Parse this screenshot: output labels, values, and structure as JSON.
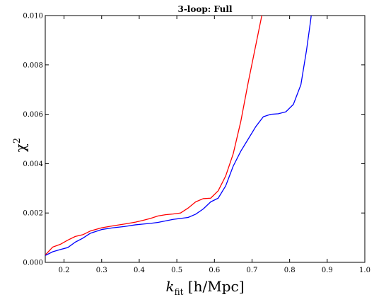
{
  "chart_data": {
    "type": "line",
    "title": "3-loop: Full",
    "xlabel": {
      "k": "k",
      "sub": "fit",
      "rest": " [h/Mpc]"
    },
    "ylabel": {
      "base": "χ",
      "sup": "2"
    },
    "xlim": [
      0.15,
      1.0
    ],
    "ylim": [
      0.0,
      0.01
    ],
    "xticks": [
      0.2,
      0.3,
      0.4,
      0.5,
      0.6,
      0.7,
      0.8,
      0.9,
      1.0
    ],
    "xtick_labels": [
      "0.2",
      "0.3",
      "0.4",
      "0.5",
      "0.6",
      "0.7",
      "0.8",
      "0.9",
      "1.0"
    ],
    "yticks": [
      0.0,
      0.002,
      0.004,
      0.006,
      0.008,
      0.01
    ],
    "ytick_labels": [
      "0.000",
      "0.002",
      "0.004",
      "0.006",
      "0.008",
      "0.010"
    ],
    "grid": false,
    "series": [
      {
        "color": "#ff0000",
        "x": [
          0.15,
          0.17,
          0.19,
          0.21,
          0.23,
          0.25,
          0.27,
          0.3,
          0.33,
          0.36,
          0.39,
          0.41,
          0.43,
          0.45,
          0.47,
          0.49,
          0.51,
          0.53,
          0.55,
          0.57,
          0.59,
          0.61,
          0.63,
          0.65,
          0.67,
          0.69,
          0.71,
          0.73
        ],
        "y": [
          0.0003,
          0.00062,
          0.00073,
          0.0009,
          0.00105,
          0.00112,
          0.00127,
          0.0014,
          0.00148,
          0.00155,
          0.00163,
          0.0017,
          0.00178,
          0.00188,
          0.00193,
          0.00196,
          0.002,
          0.0022,
          0.00245,
          0.00258,
          0.0026,
          0.0029,
          0.0035,
          0.0044,
          0.0057,
          0.0073,
          0.0088,
          0.0103
        ]
      },
      {
        "color": "#0000ff",
        "x": [
          0.15,
          0.17,
          0.19,
          0.21,
          0.23,
          0.25,
          0.27,
          0.3,
          0.33,
          0.36,
          0.39,
          0.41,
          0.43,
          0.45,
          0.47,
          0.49,
          0.51,
          0.53,
          0.55,
          0.57,
          0.59,
          0.61,
          0.63,
          0.65,
          0.67,
          0.69,
          0.71,
          0.73,
          0.75,
          0.77,
          0.79,
          0.81,
          0.83,
          0.845,
          0.855,
          0.86
        ],
        "y": [
          0.00028,
          0.00043,
          0.00052,
          0.0006,
          0.00082,
          0.00098,
          0.00118,
          0.00133,
          0.0014,
          0.00145,
          0.00152,
          0.00155,
          0.00158,
          0.00162,
          0.00168,
          0.00174,
          0.00178,
          0.00182,
          0.00195,
          0.00216,
          0.00245,
          0.0026,
          0.0031,
          0.0039,
          0.0045,
          0.005,
          0.0055,
          0.0059,
          0.006,
          0.00602,
          0.0061,
          0.0064,
          0.0072,
          0.0086,
          0.0097,
          0.0103
        ]
      }
    ]
  }
}
